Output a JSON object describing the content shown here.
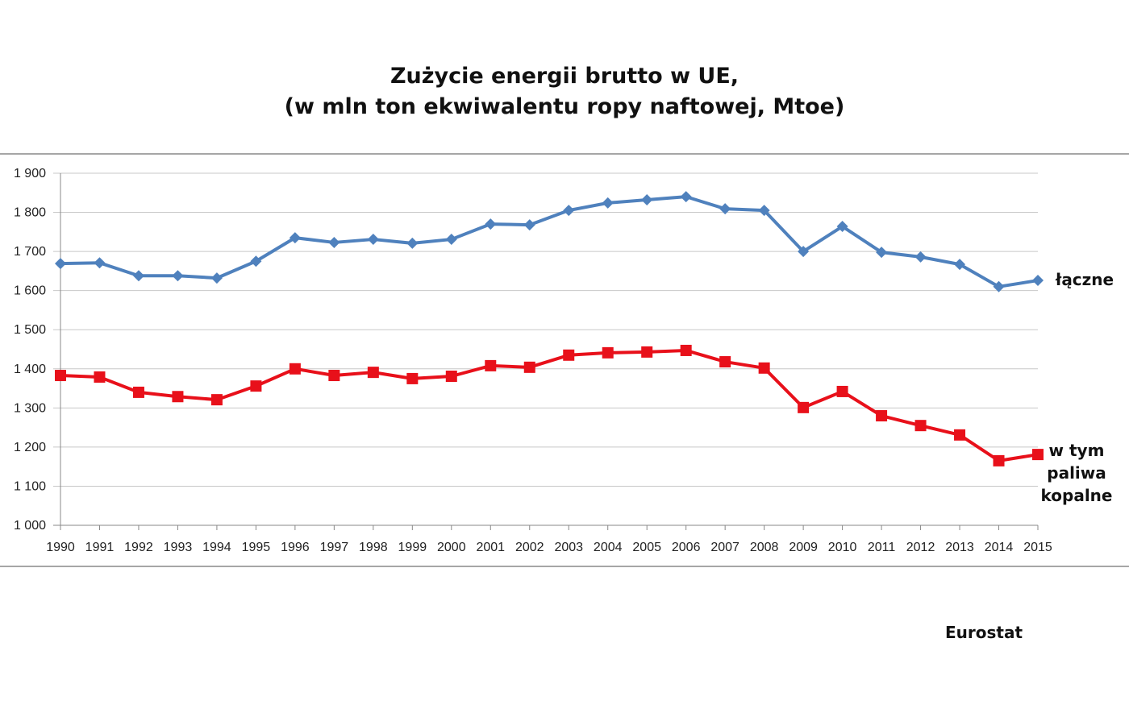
{
  "chart_data": {
    "type": "line",
    "title": "Zużycie energii brutto w UE,",
    "subtitle": "(w mln ton ekwiwalentu ropy naftowej, Mtoe)",
    "xlabel": "",
    "ylabel": "",
    "ylim": [
      1000,
      1900
    ],
    "yticks": [
      "1 000",
      "1 100",
      "1 200",
      "1 300",
      "1 400",
      "1 500",
      "1 600",
      "1 700",
      "1 800",
      "1 900"
    ],
    "grid": true,
    "legend": "inline-right",
    "x": [
      "1990",
      "1991",
      "1992",
      "1993",
      "1994",
      "1995",
      "1996",
      "1997",
      "1998",
      "1999",
      "2000",
      "2001",
      "2002",
      "2003",
      "2004",
      "2005",
      "2006",
      "2007",
      "2008",
      "2009",
      "2010",
      "2011",
      "2012",
      "2013",
      "2014",
      "2015"
    ],
    "series": [
      {
        "name": "łączne",
        "color": "#4f81bd",
        "marker": "diamond",
        "values": [
          1669,
          1671,
          1638,
          1638,
          1632,
          1675,
          1735,
          1723,
          1731,
          1721,
          1731,
          1770,
          1768,
          1805,
          1824,
          1832,
          1840,
          1809,
          1805,
          1700,
          1764,
          1698,
          1686,
          1667,
          1610,
          1626
        ]
      },
      {
        "name": "w tym paliwa kopalne",
        "name_lines": [
          "w tym",
          "paliwa",
          "kopalne"
        ],
        "color": "#e8101a",
        "marker": "square",
        "values": [
          1383,
          1379,
          1340,
          1329,
          1321,
          1356,
          1400,
          1383,
          1391,
          1375,
          1381,
          1408,
          1404,
          1435,
          1441,
          1443,
          1447,
          1418,
          1402,
          1301,
          1342,
          1280,
          1255,
          1231,
          1165,
          1181
        ]
      }
    ],
    "source": "Eurostat"
  }
}
